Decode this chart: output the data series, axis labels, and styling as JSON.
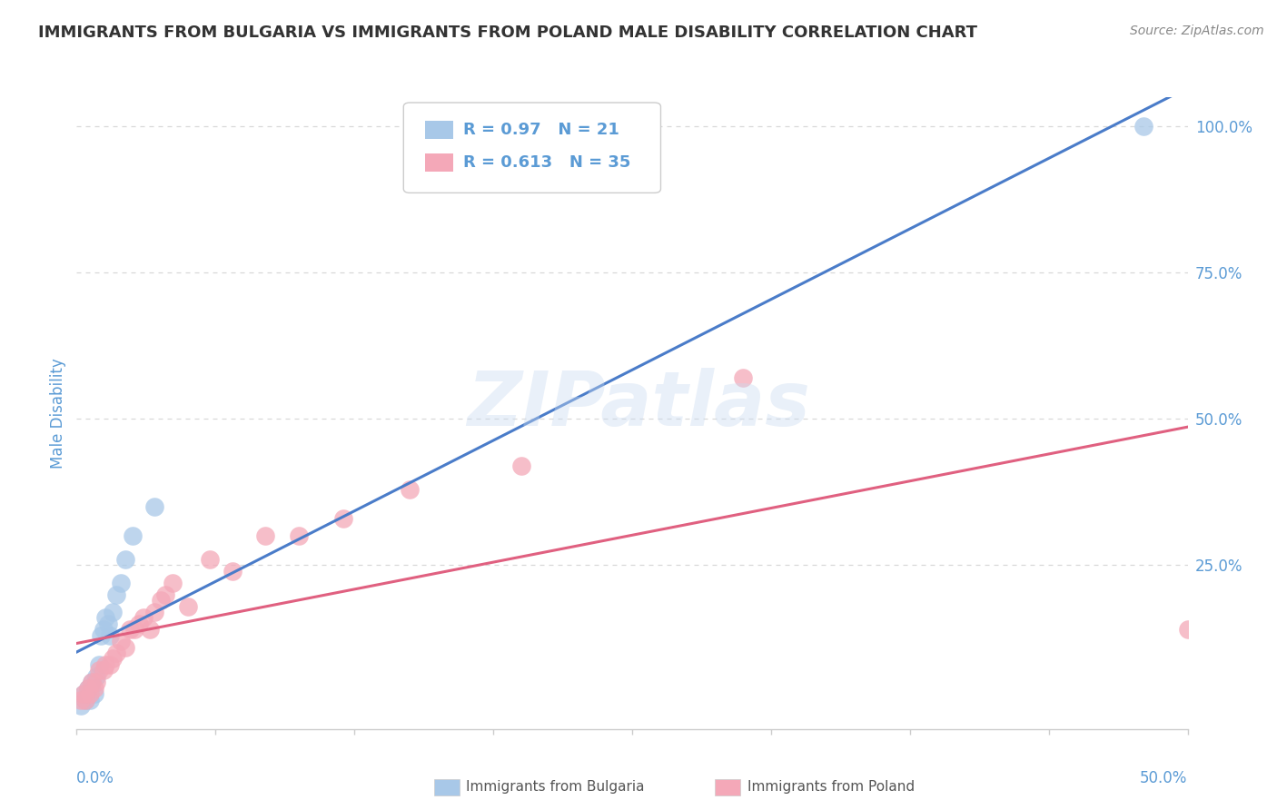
{
  "title": "IMMIGRANTS FROM BULGARIA VS IMMIGRANTS FROM POLAND MALE DISABILITY CORRELATION CHART",
  "source": "Source: ZipAtlas.com",
  "ylabel": "Male Disability",
  "xlim": [
    0.0,
    0.5
  ],
  "ylim": [
    -0.03,
    1.05
  ],
  "bulgaria_R": 0.97,
  "bulgaria_N": 21,
  "poland_R": 0.613,
  "poland_N": 35,
  "legend_color_bulgaria": "#a8c8e8",
  "legend_color_poland": "#f4a8b8",
  "line_color_bulgaria": "#4a7cc9",
  "line_color_poland": "#e06080",
  "scatter_color_bulgaria": "#a8c8e8",
  "scatter_color_poland": "#f4a8b8",
  "background_color": "#ffffff",
  "grid_color": "#d8d8d8",
  "title_color": "#333333",
  "axis_label_color": "#5b9bd5",
  "r_label_color": "#333333",
  "r_value_color": "#5b9bd5",
  "bulgaria_x": [
    0.002,
    0.003,
    0.004,
    0.005,
    0.006,
    0.007,
    0.008,
    0.009,
    0.01,
    0.011,
    0.012,
    0.013,
    0.014,
    0.015,
    0.016,
    0.018,
    0.02,
    0.022,
    0.025,
    0.035,
    0.48
  ],
  "bulgaria_y": [
    0.01,
    0.03,
    0.02,
    0.04,
    0.02,
    0.05,
    0.03,
    0.06,
    0.08,
    0.13,
    0.14,
    0.16,
    0.15,
    0.13,
    0.17,
    0.2,
    0.22,
    0.26,
    0.3,
    0.35,
    1.0
  ],
  "poland_x": [
    0.002,
    0.003,
    0.004,
    0.005,
    0.006,
    0.007,
    0.008,
    0.009,
    0.01,
    0.012,
    0.013,
    0.015,
    0.016,
    0.018,
    0.02,
    0.022,
    0.024,
    0.026,
    0.028,
    0.03,
    0.033,
    0.035,
    0.038,
    0.04,
    0.043,
    0.05,
    0.06,
    0.07,
    0.085,
    0.1,
    0.12,
    0.15,
    0.2,
    0.3,
    0.5
  ],
  "poland_y": [
    0.02,
    0.03,
    0.02,
    0.04,
    0.03,
    0.05,
    0.04,
    0.05,
    0.07,
    0.07,
    0.08,
    0.08,
    0.09,
    0.1,
    0.12,
    0.11,
    0.14,
    0.14,
    0.15,
    0.16,
    0.14,
    0.17,
    0.19,
    0.2,
    0.22,
    0.18,
    0.26,
    0.24,
    0.3,
    0.3,
    0.33,
    0.38,
    0.42,
    0.57,
    0.14
  ]
}
